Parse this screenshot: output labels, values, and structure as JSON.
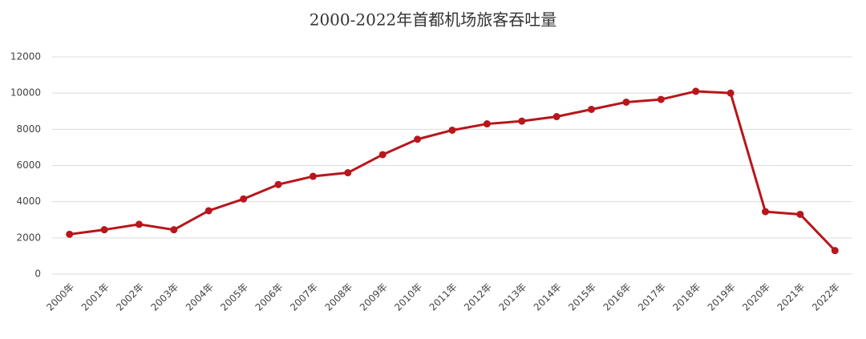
{
  "chart_data": {
    "type": "line",
    "title": "2000-2022年首都机场旅客吞吐量",
    "categories": [
      "2000年",
      "2001年",
      "2002年",
      "2003年",
      "2004年",
      "2005年",
      "2006年",
      "2007年",
      "2008年",
      "2009年",
      "2010年",
      "2011年",
      "2012年",
      "2013年",
      "2014年",
      "2015年",
      "2016年",
      "2017年",
      "2018年",
      "2019年",
      "2020年",
      "2021年",
      "2022年"
    ],
    "series": [
      {
        "color": "#b8161b",
        "values": [
          2200,
          2450,
          2750,
          2450,
          3500,
          4150,
          4950,
          5400,
          5600,
          6600,
          7450,
          7950,
          8300,
          8450,
          8700,
          9100,
          9500,
          9650,
          10100,
          10000,
          3450,
          3300,
          1300
        ]
      }
    ],
    "ylim": [
      0,
      12000
    ],
    "yticks": [
      0,
      2000,
      4000,
      6000,
      8000,
      10000,
      12000
    ],
    "grid": true
  }
}
